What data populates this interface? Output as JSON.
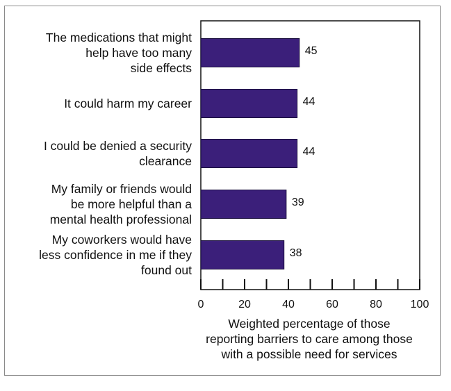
{
  "chart_data": {
    "type": "bar",
    "orientation": "horizontal",
    "categories": [
      "The medications that might help have too many side effects",
      "It could harm my career",
      "I could be denied a security clearance",
      "My family or friends would be more helpful than a mental health professional",
      "My coworkers would have less confidence in me if they found out"
    ],
    "category_lines": [
      [
        "The medications that might",
        "help have too many",
        "side effects"
      ],
      [
        "It could harm my career"
      ],
      [
        "I could be denied a security",
        "clearance"
      ],
      [
        "My family or friends would",
        "be more helpful than a",
        "mental health professional"
      ],
      [
        "My coworkers would have",
        "less confidence in me if they",
        "found out"
      ]
    ],
    "values": [
      45,
      44,
      44,
      39,
      38
    ],
    "data_labels": [
      "45",
      "44",
      "44",
      "39",
      "38"
    ],
    "xlim": [
      0,
      100
    ],
    "xticks": [
      0,
      20,
      40,
      60,
      80,
      100
    ],
    "xtick_labels": [
      "0",
      "20",
      "40",
      "60",
      "80",
      "100"
    ],
    "xlabel_lines": [
      "Weighted percentage of those",
      "reporting barriers to care among those",
      "with a possible need for services"
    ],
    "bar_color": "#3b1f7a",
    "grid": false
  }
}
